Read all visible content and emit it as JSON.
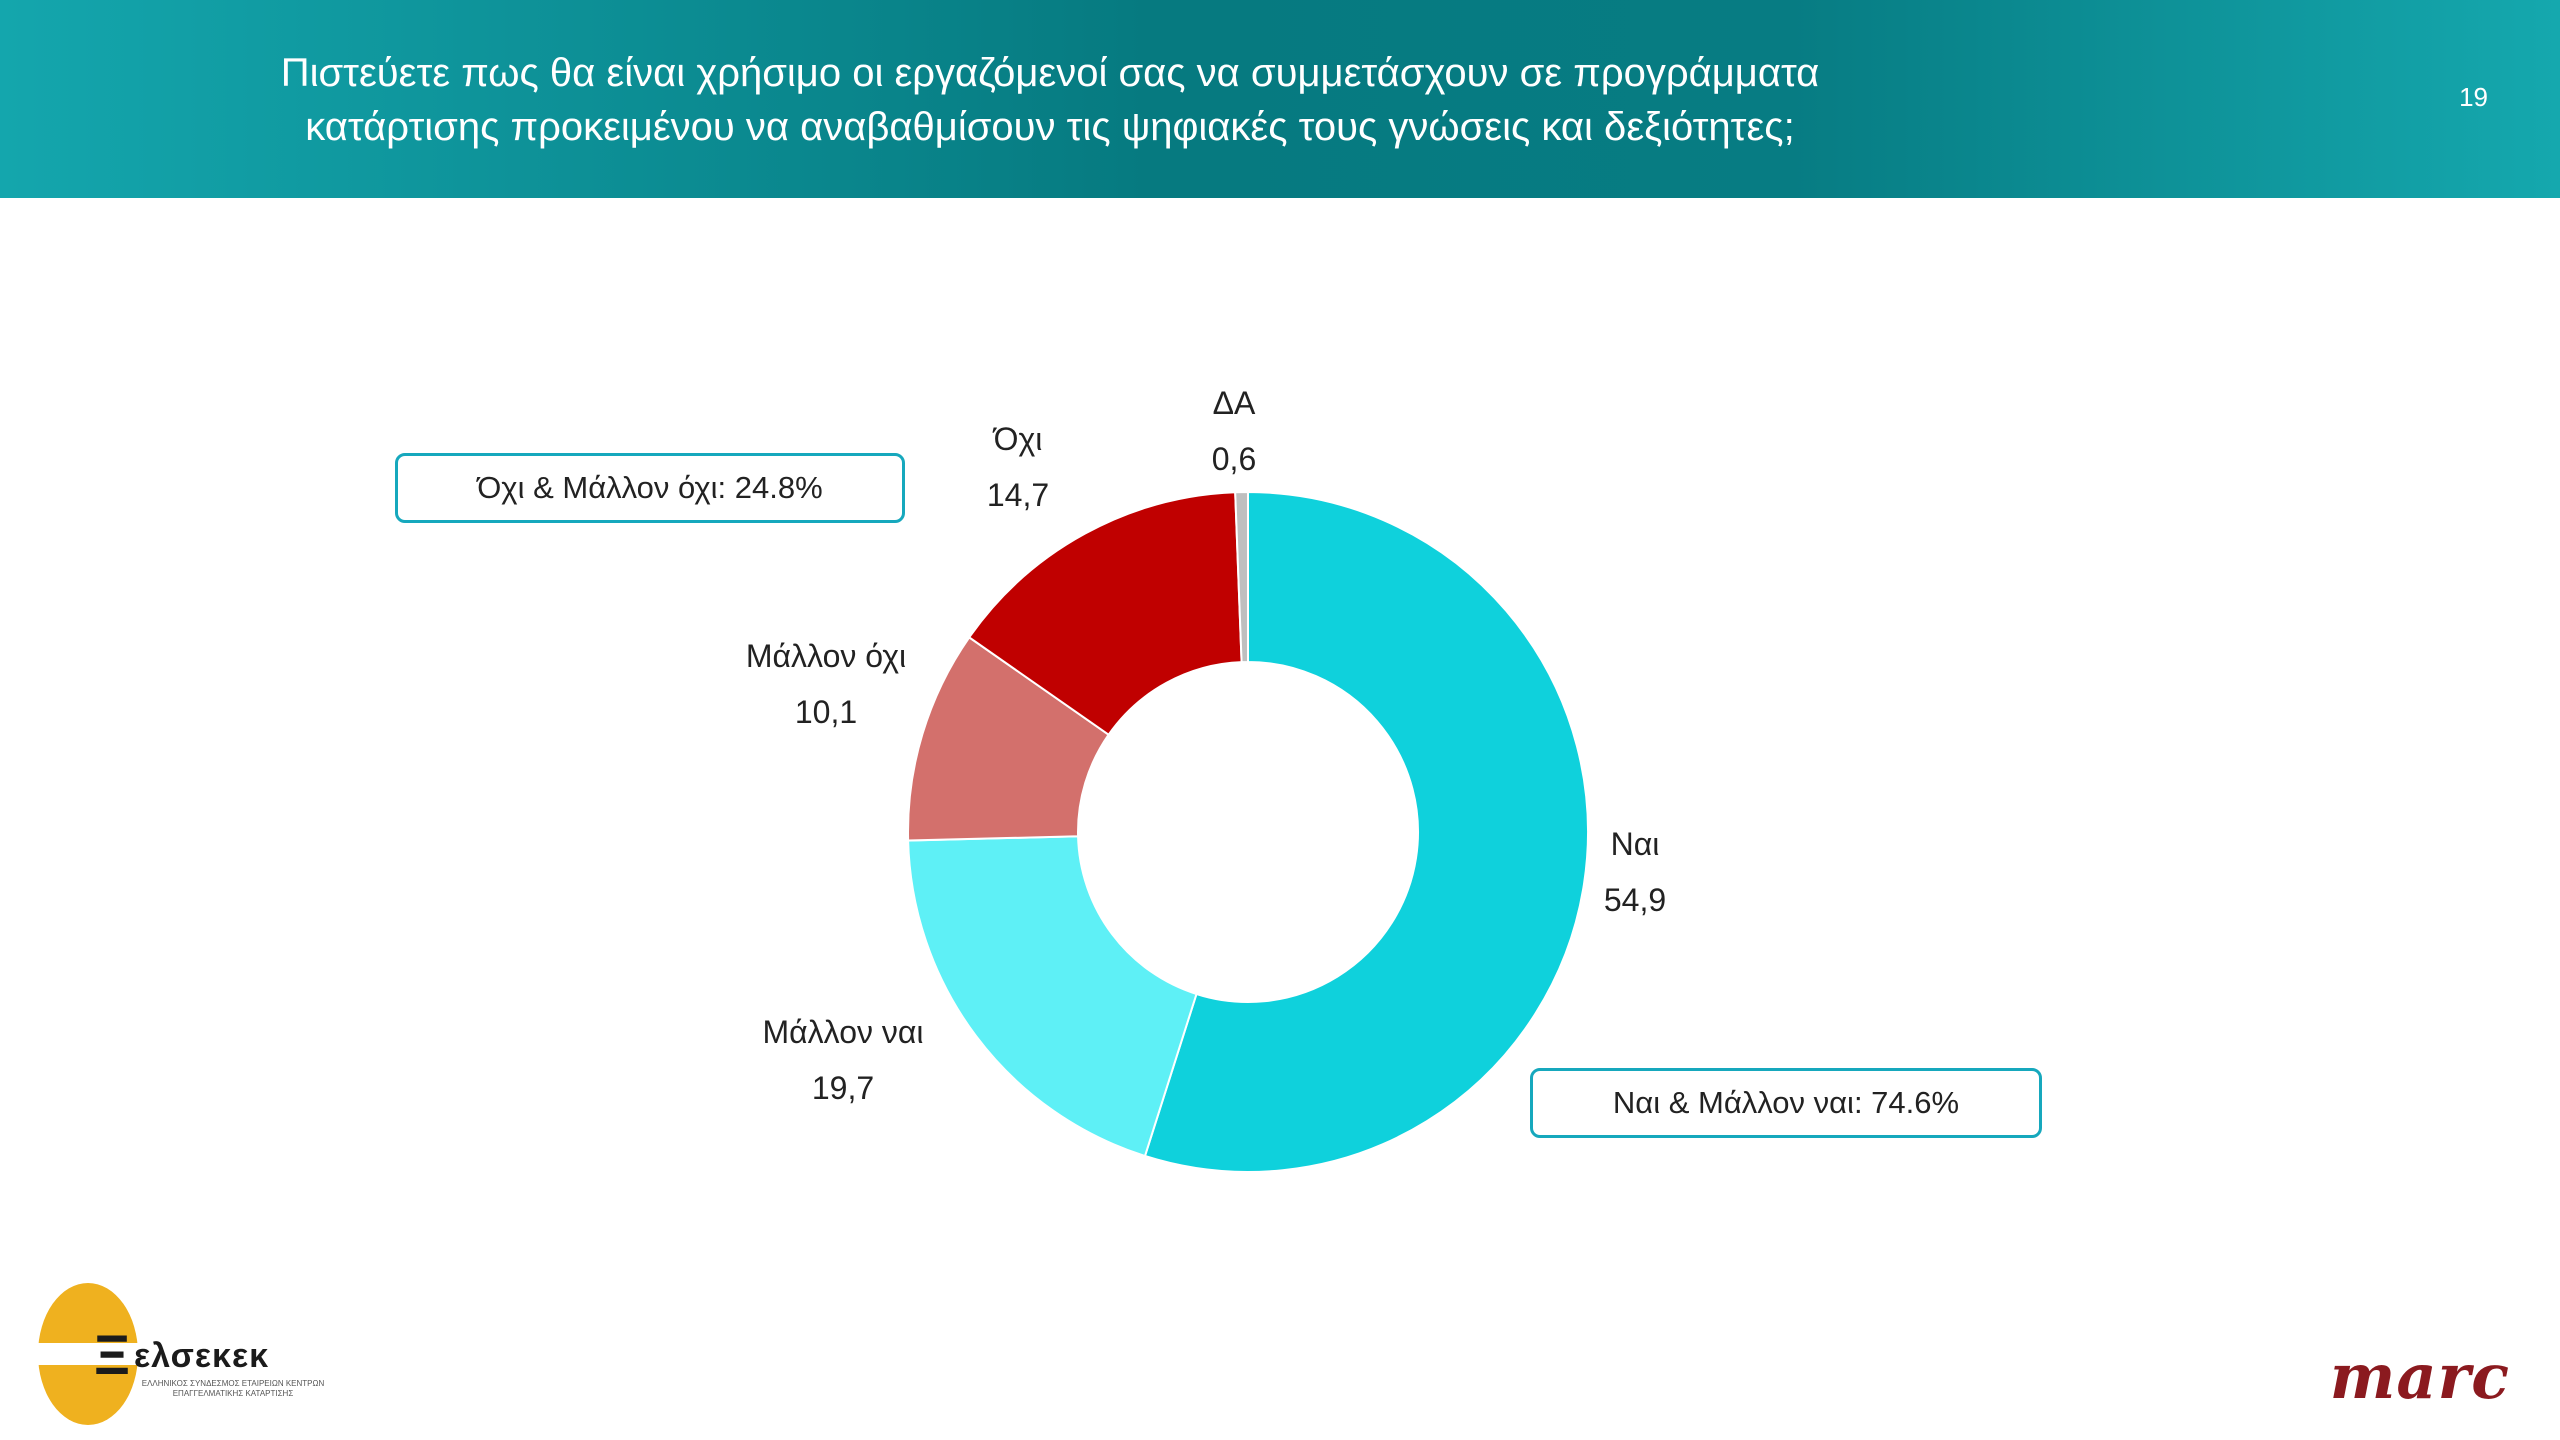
{
  "header": {
    "title_line1": "Πιστεύετε πως θα είναι χρήσιμο οι εργαζόμενοί σας να συμμετάσχουν σε προγράμματα",
    "title_line2": "κατάρτισης προκειμένου να αναβαθμίσουν τις ψηφιακές τους γνώσεις και δεξιότητες;",
    "page_number": "19"
  },
  "colors": {
    "header": "#0a8a90",
    "nai": "#0fd1dc",
    "mallon_nai": "#5ef0f6",
    "mallon_oxi": "#d3706c",
    "oxi": "#c00000",
    "da": "#bfbfbf",
    "callout_border": "#16a8bd",
    "marc": "#8b1a1f",
    "elsekek": "#efb11f"
  },
  "chart_data": {
    "type": "pie",
    "donut": true,
    "start_angle_deg": 0,
    "direction": "clockwise",
    "slices": [
      {
        "label": "Ναι",
        "value": 54.9,
        "display": "54,9",
        "color": "#0fd1dc"
      },
      {
        "label": "Μάλλον ναι",
        "value": 19.7,
        "display": "19,7",
        "color": "#5ef0f6"
      },
      {
        "label": "Μάλλον όχι",
        "value": 10.1,
        "display": "10,1",
        "color": "#d3706c"
      },
      {
        "label": "Όχι",
        "value": 14.7,
        "display": "14,7",
        "color": "#c00000"
      },
      {
        "label": "ΔΑ",
        "value": 0.6,
        "display": "0,6",
        "color": "#bfbfbf"
      }
    ],
    "annotations": [
      {
        "text": "Όχι & Μάλλον όχι: 24.8%"
      },
      {
        "text": "Ναι & Μάλλον ναι: 74.6%"
      }
    ]
  },
  "logos": {
    "left_name": "ελσεκεκ",
    "left_mark": "Ξ",
    "left_subtitle": "ΕΛΛΗΝΙΚΟΣ ΣΥΝΔΕΣΜΟΣ ΕΤΑΙΡΕΙΩΝ ΚΕΝΤΡΩΝ ΕΠΑΓΓΕΛΜΑΤΙΚΗΣ ΚΑΤΑΡΤΙΣΗΣ",
    "right_name": "marc"
  }
}
